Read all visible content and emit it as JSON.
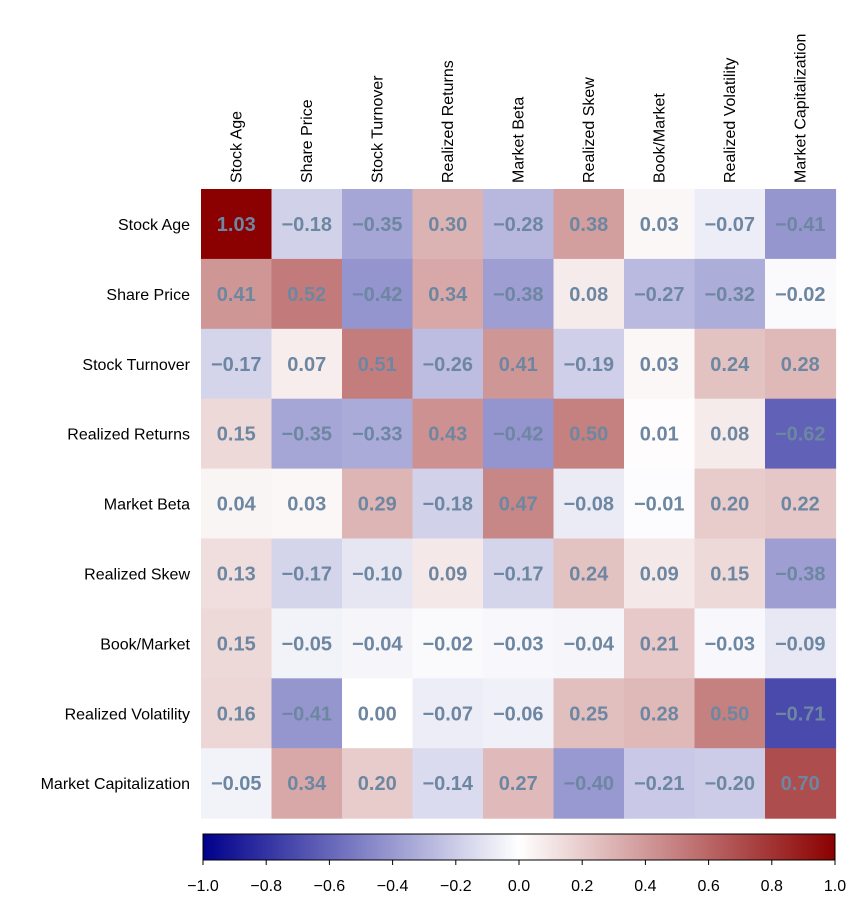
{
  "chart_data": {
    "type": "heatmap",
    "labels": [
      "Stock Age",
      "Share Price",
      "Stock Turnover",
      "Realized Returns",
      "Market Beta",
      "Realized Skew",
      "Book/Market",
      "Realized Volatility",
      "Market Capitalization"
    ],
    "values": [
      [
        1.03,
        -0.18,
        -0.35,
        0.3,
        -0.28,
        0.38,
        0.03,
        -0.07,
        -0.41
      ],
      [
        0.41,
        0.52,
        -0.42,
        0.34,
        -0.38,
        0.08,
        -0.27,
        -0.32,
        -0.02
      ],
      [
        -0.17,
        0.07,
        0.51,
        -0.26,
        0.41,
        -0.19,
        0.03,
        0.24,
        0.28
      ],
      [
        0.15,
        -0.35,
        -0.33,
        0.43,
        -0.42,
        0.5,
        0.01,
        0.08,
        -0.62
      ],
      [
        0.04,
        0.03,
        0.29,
        -0.18,
        0.47,
        -0.08,
        -0.01,
        0.2,
        0.22
      ],
      [
        0.13,
        -0.17,
        -0.1,
        0.09,
        -0.17,
        0.24,
        0.09,
        0.15,
        -0.38
      ],
      [
        0.15,
        -0.05,
        -0.04,
        -0.02,
        -0.03,
        -0.04,
        0.21,
        -0.03,
        -0.09
      ],
      [
        0.16,
        -0.41,
        0.0,
        -0.07,
        -0.06,
        0.25,
        0.28,
        0.5,
        -0.71
      ],
      [
        -0.05,
        0.34,
        0.2,
        -0.14,
        0.27,
        -0.4,
        -0.21,
        -0.2,
        0.7
      ]
    ],
    "colorbar": {
      "range": [
        -1.0,
        1.0
      ],
      "ticks": [
        -1.0,
        -0.8,
        -0.6,
        -0.4,
        -0.2,
        0.0,
        0.2,
        0.4,
        0.6,
        0.8,
        1.0
      ],
      "colors": {
        "low": "#00008b",
        "mid": "#ffffff",
        "high": "#8b0000"
      }
    },
    "value_text_color": "#6d87a2"
  }
}
